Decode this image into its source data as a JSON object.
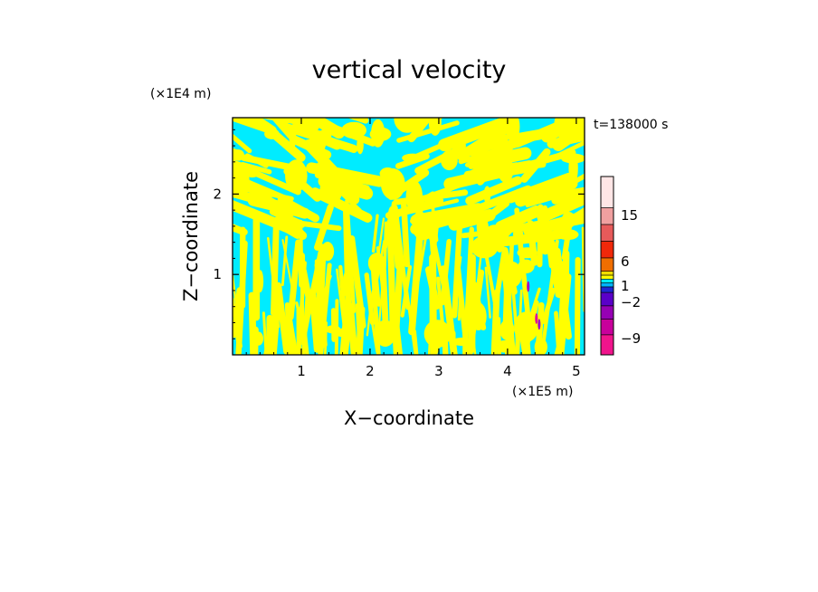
{
  "chart_data": {
    "type": "heatmap",
    "title": "vertical velocity",
    "xlabel": "X−coordinate",
    "ylabel": "Z−coordinate",
    "x_scale_label": "(×1E5 m)",
    "y_scale_label": "(×1E4 m)",
    "time_label": "t=138000 s",
    "xlim": [
      0,
      5.12
    ],
    "ylim": [
      0,
      2.95
    ],
    "x_ticks": [
      1,
      2,
      3,
      4,
      5
    ],
    "y_ticks": [
      1,
      2
    ],
    "x_tick_labels": [
      "1",
      "2",
      "3",
      "4",
      "5"
    ],
    "y_tick_labels": [
      "1",
      "2"
    ],
    "field": {
      "dominant_colors": [
        "#ffff00",
        "#00ecff"
      ],
      "rare_colors": [
        "#a000c8",
        "#e000a0"
      ],
      "pattern": "turbulent streaky contours, near-vertical streaks at low levels and slanted bands aloft"
    },
    "colorbar": {
      "colors": [
        "#f0148c",
        "#c8009b",
        "#9600b4",
        "#5a00c8",
        "#1e28d2",
        "#00b4ff",
        "#00ecff",
        "#ffff00",
        "#f0dc00",
        "#f06e00",
        "#f0280a",
        "#e65a5a",
        "#f0a0a0",
        "#ffe6e6"
      ],
      "tick_labels": [
        "15",
        "6",
        "1",
        "−2",
        "−9"
      ],
      "tick_values": [
        15,
        6,
        1,
        -2,
        -9
      ]
    }
  }
}
